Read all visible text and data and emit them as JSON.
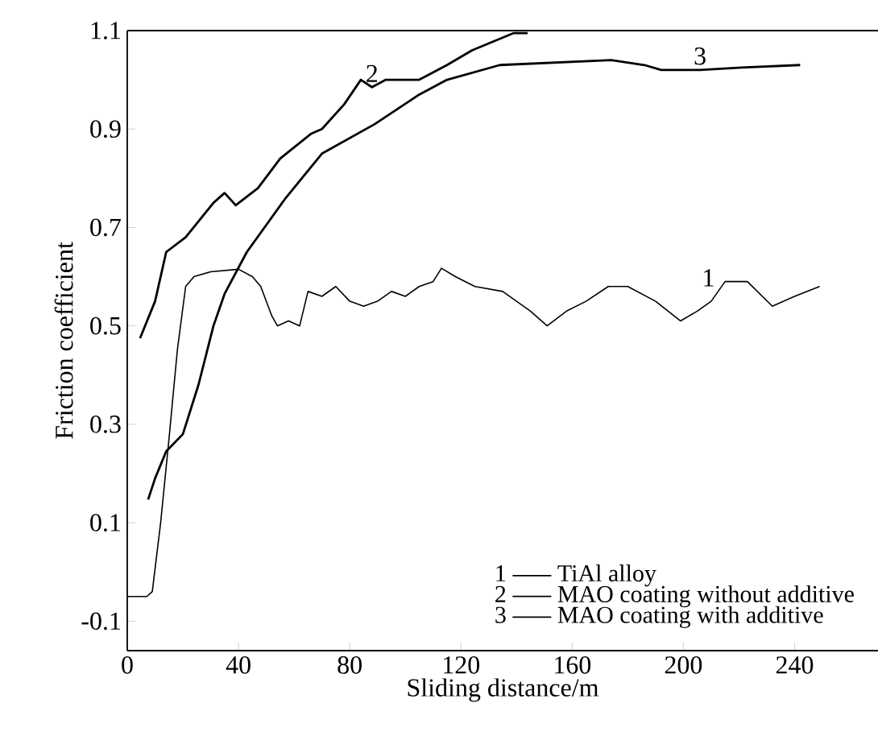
{
  "chart_data": {
    "type": "line",
    "xlabel": "Sliding distance/m",
    "ylabel": "Friction coefficient",
    "xlim": [
      0,
      270
    ],
    "ylim": [
      -0.16,
      1.1
    ],
    "xticks": [
      0,
      40,
      80,
      120,
      160,
      200,
      240
    ],
    "yticks": [
      -0.1,
      0.1,
      0.3,
      0.5,
      0.7,
      0.9,
      1.1
    ],
    "legend": "bottom right",
    "grid": false,
    "marker": "none",
    "line_style": "solid",
    "series": [
      {
        "name": "TiAl alloy",
        "color": "#000000",
        "x": [
          0,
          7,
          9,
          12,
          15,
          18,
          21,
          24,
          30,
          40,
          45,
          48,
          52,
          54,
          58,
          62,
          65,
          70,
          75,
          80,
          85,
          90,
          95,
          100,
          105,
          110,
          113,
          118,
          125,
          135,
          140,
          145,
          151,
          158,
          165,
          173,
          180,
          190,
          199,
          205,
          210,
          215,
          223,
          232,
          240,
          249
        ],
        "values": [
          -0.05,
          -0.05,
          -0.04,
          0.1,
          0.27,
          0.45,
          0.58,
          0.6,
          0.61,
          0.615,
          0.6,
          0.58,
          0.52,
          0.5,
          0.51,
          0.5,
          0.57,
          0.56,
          0.58,
          0.55,
          0.54,
          0.55,
          0.57,
          0.56,
          0.58,
          0.59,
          0.617,
          0.6,
          0.58,
          0.57,
          0.55,
          0.53,
          0.5,
          0.53,
          0.55,
          0.58,
          0.58,
          0.55,
          0.51,
          0.53,
          0.55,
          0.59,
          0.59,
          0.54,
          0.56,
          0.58
        ]
      },
      {
        "name": "MAO coating without additive",
        "color": "#000000",
        "x": [
          4.6,
          10,
          14,
          21,
          31,
          35,
          39,
          47,
          55,
          66,
          70,
          78,
          84,
          88,
          93,
          105,
          115,
          124,
          139,
          144
        ],
        "values": [
          0.475,
          0.55,
          0.65,
          0.68,
          0.75,
          0.77,
          0.745,
          0.78,
          0.84,
          0.89,
          0.9,
          0.95,
          1.0,
          0.985,
          1.0,
          1.0,
          1.03,
          1.06,
          1.095,
          1.095
        ]
      },
      {
        "name": "MAO coating with additive",
        "color": "#000000",
        "x": [
          7.5,
          10,
          14,
          20,
          25.6,
          31,
          35,
          43,
          57,
          70,
          89,
          105,
          115,
          134,
          174,
          186,
          192,
          206,
          221,
          242
        ],
        "values": [
          0.147,
          0.19,
          0.245,
          0.28,
          0.38,
          0.5,
          0.565,
          0.65,
          0.76,
          0.85,
          0.91,
          0.97,
          1.0,
          1.03,
          1.04,
          1.03,
          1.02,
          1.02,
          1.025,
          1.03
        ]
      }
    ],
    "annotations": [
      {
        "text": "1",
        "x": 209,
        "y": 0.57
      },
      {
        "text": "2",
        "x": 88,
        "y": 0.985
      },
      {
        "text": "3",
        "x": 206,
        "y": 1.02
      }
    ]
  }
}
